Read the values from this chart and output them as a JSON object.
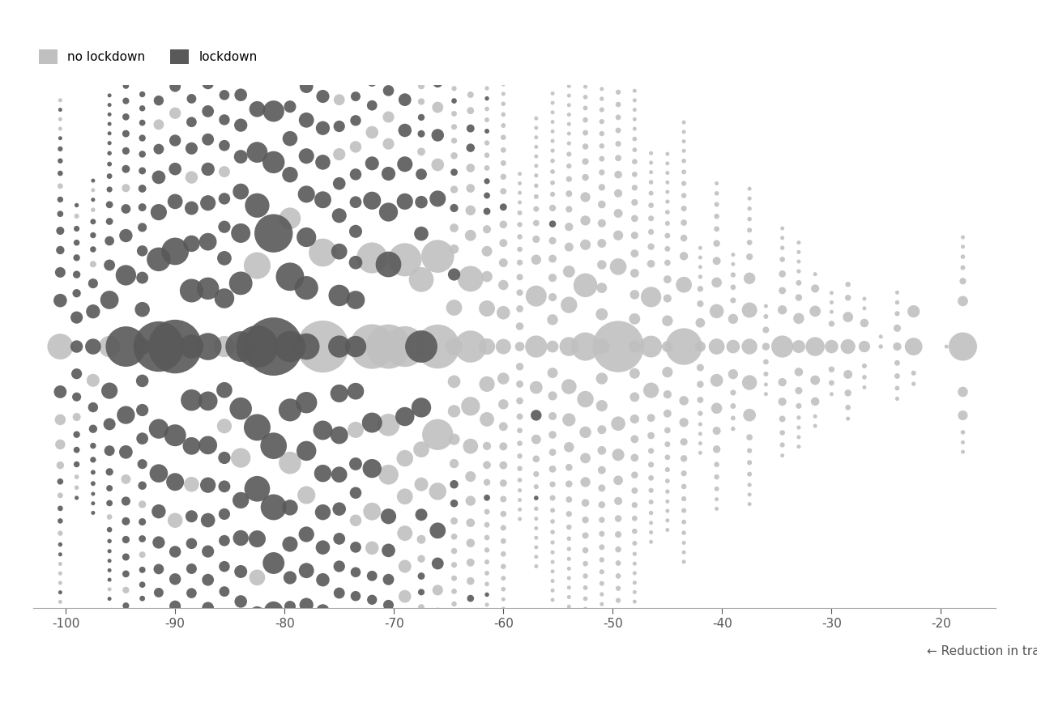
{
  "title": "",
  "xlabel": "← Reduction in travel (%)",
  "xlim": [
    -103,
    -15
  ],
  "ylim": [
    -14,
    14
  ],
  "color_lockdown": "#595959",
  "color_no_lockdown": "#c0c0c0",
  "legend_no_lockdown": "no lockdown",
  "legend_lockdown": "lockdown",
  "background_color": "#ffffff",
  "xticks": [
    -100,
    -90,
    -80,
    -70,
    -60,
    -50,
    -40,
    -30,
    -20
  ],
  "tick_fontsize": 11,
  "label_fontsize": 11,
  "n_counties": 3000,
  "seed": 42
}
